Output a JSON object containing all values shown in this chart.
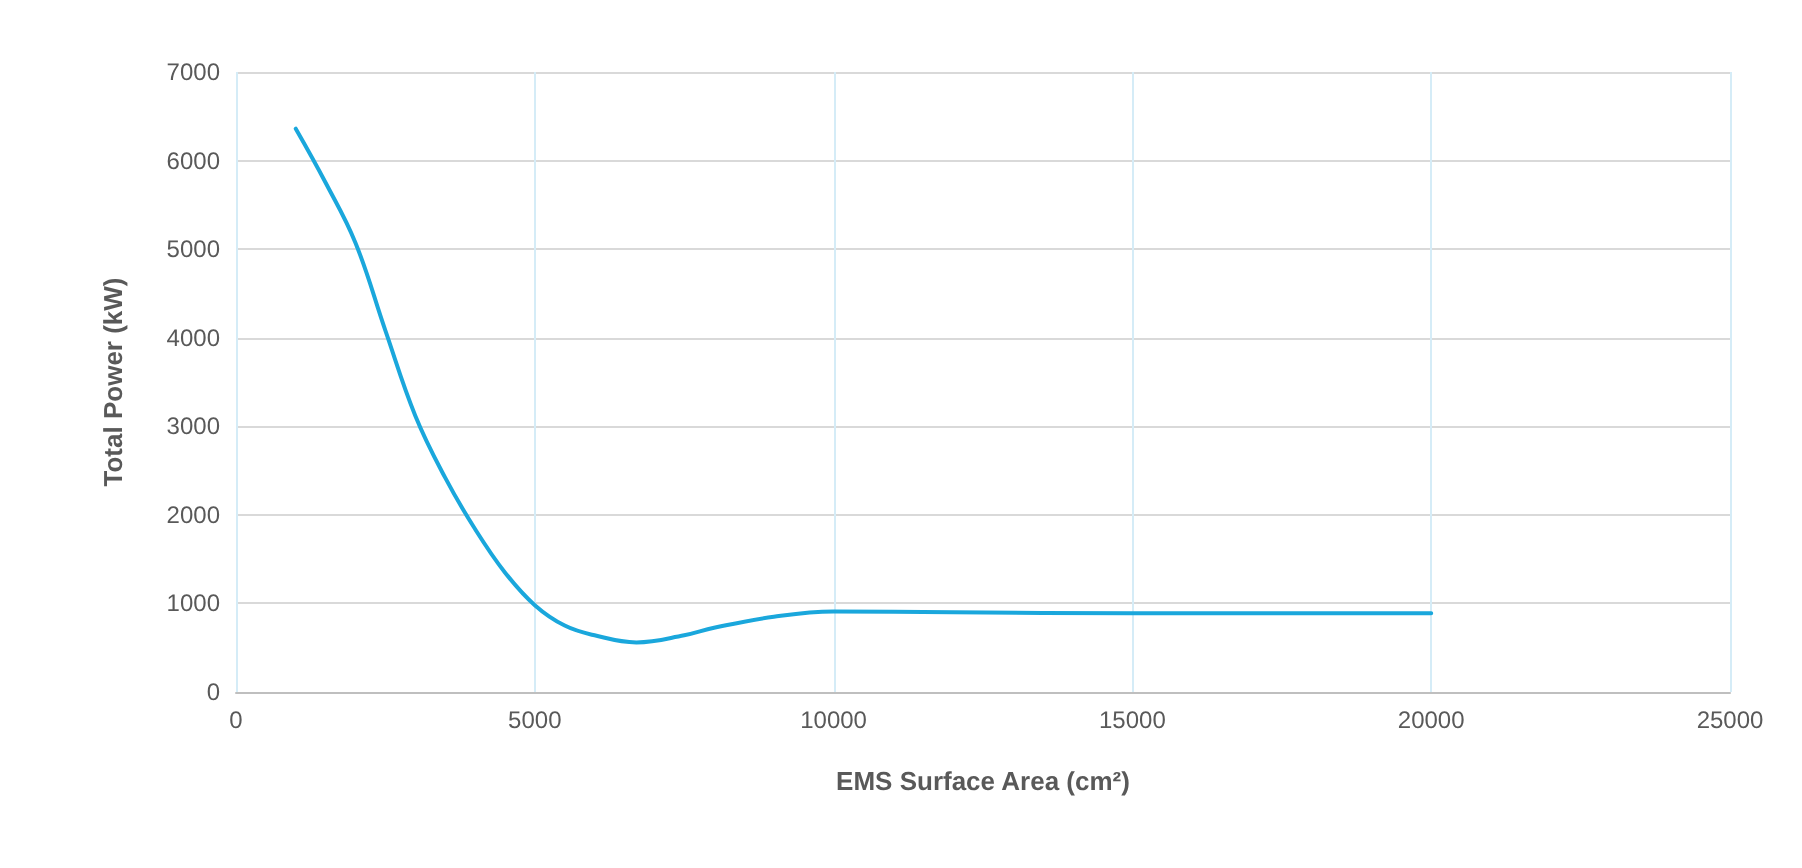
{
  "chart_data": {
    "type": "line",
    "xlabel": "EMS Surface Area (cm²)",
    "ylabel": "Total Power (kW)",
    "x": [
      1000,
      1500,
      2000,
      2500,
      3000,
      3500,
      4000,
      4500,
      5000,
      5500,
      6000,
      6700,
      7500,
      8000,
      9000,
      10000,
      12000,
      15000,
      20000
    ],
    "series": [
      {
        "color": "#1aa7dc",
        "values": [
          6360,
          5750,
          5070,
          4080,
          3120,
          2420,
          1840,
          1350,
          980,
          750,
          640,
          560,
          640,
          725,
          850,
          910,
          900,
          890,
          890
        ]
      }
    ],
    "xlim": [
      0,
      25000
    ],
    "xticks": [
      0,
      5000,
      10000,
      15000,
      20000,
      25000
    ],
    "ylim": [
      0,
      7000
    ],
    "yticks": [
      0,
      1000,
      2000,
      3000,
      4000,
      5000,
      6000,
      7000
    ],
    "grid": true,
    "marker": "none",
    "line_style": "solid"
  }
}
